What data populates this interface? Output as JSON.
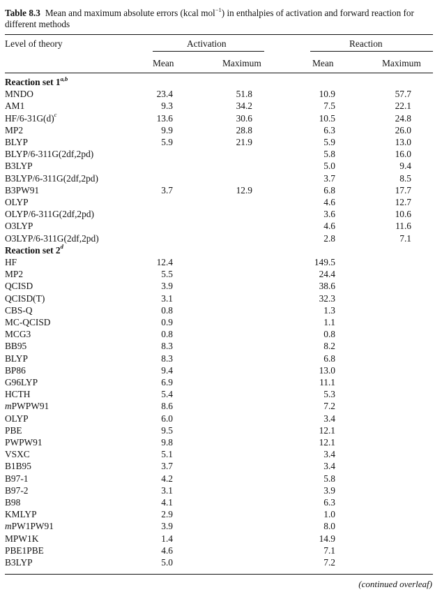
{
  "caption": {
    "number": "Table 8.3",
    "text_a": "Mean and maximum absolute errors (kcal mol",
    "text_sup": "−1",
    "text_b": ") in enthalpies of activation and forward reaction for different methods"
  },
  "header": {
    "level": "Level of theory",
    "activation": "Activation",
    "reaction": "Reaction",
    "mean1": "Mean",
    "max1": "Maximum",
    "mean2": "Mean",
    "max2": "Maximum"
  },
  "rows": [
    {
      "type": "section",
      "label": "Reaction set 1",
      "sup": "a,b"
    },
    {
      "label": "MNDO",
      "v": [
        "23.4",
        "51.8",
        "10.9",
        "57.7"
      ]
    },
    {
      "label": "AM1",
      "v": [
        "9.3",
        "34.2",
        "7.5",
        "22.1"
      ]
    },
    {
      "label": "HF/6-31G(d)",
      "sup": "c",
      "v": [
        "13.6",
        "30.6",
        "10.5",
        "24.8"
      ]
    },
    {
      "label": "MP2",
      "v": [
        "9.9",
        "28.8",
        "6.3",
        "26.0"
      ]
    },
    {
      "label": "BLYP",
      "v": [
        "5.9",
        "21.9",
        "5.9",
        "13.0"
      ]
    },
    {
      "label": "BLYP/6-311G(2df,2pd)",
      "v": [
        "",
        "",
        "5.8",
        "16.0"
      ]
    },
    {
      "label": "B3LYP",
      "v": [
        "",
        "",
        "5.0",
        "9.4"
      ]
    },
    {
      "label": "B3LYP/6-311G(2df,2pd)",
      "v": [
        "",
        "",
        "3.7",
        "8.5"
      ]
    },
    {
      "label": "B3PW91",
      "v": [
        "3.7",
        "12.9",
        "6.8",
        "17.7"
      ]
    },
    {
      "label": "OLYP",
      "v": [
        "",
        "",
        "4.6",
        "12.7"
      ]
    },
    {
      "label": "OLYP/6-311G(2df,2pd)",
      "v": [
        "",
        "",
        "3.6",
        "10.6"
      ]
    },
    {
      "label": "O3LYP",
      "v": [
        "",
        "",
        "4.6",
        "11.6"
      ]
    },
    {
      "label": "O3LYP/6-311G(2df,2pd)",
      "v": [
        "",
        "",
        "2.8",
        "7.1"
      ]
    },
    {
      "type": "section",
      "label": "Reaction set 2",
      "sup": "d"
    },
    {
      "label": "HF",
      "v": [
        "12.4",
        "",
        "149.5",
        ""
      ]
    },
    {
      "label": "MP2",
      "v": [
        "5.5",
        "",
        "24.4",
        ""
      ]
    },
    {
      "label": "QCISD",
      "v": [
        "3.9",
        "",
        "38.6",
        ""
      ]
    },
    {
      "label": "QCISD(T)",
      "v": [
        "3.1",
        "",
        "32.3",
        ""
      ]
    },
    {
      "label": "CBS-Q",
      "v": [
        "0.8",
        "",
        "1.3",
        ""
      ]
    },
    {
      "label": "MC-QCISD",
      "v": [
        "0.9",
        "",
        "1.1",
        ""
      ]
    },
    {
      "label": "MCG3",
      "v": [
        "0.8",
        "",
        "0.8",
        ""
      ]
    },
    {
      "label": "BB95",
      "v": [
        "8.3",
        "",
        "8.2",
        ""
      ]
    },
    {
      "label": "BLYP",
      "v": [
        "8.3",
        "",
        "6.8",
        ""
      ]
    },
    {
      "label": "BP86",
      "v": [
        "9.4",
        "",
        "13.0",
        ""
      ]
    },
    {
      "label": "G96LYP",
      "v": [
        "6.9",
        "",
        "11.1",
        ""
      ]
    },
    {
      "label": "HCTH",
      "v": [
        "5.4",
        "",
        "5.3",
        ""
      ]
    },
    {
      "label": "mPWPW91",
      "italic_prefix": "m",
      "v": [
        "8.6",
        "",
        "7.2",
        ""
      ]
    },
    {
      "label": "OLYP",
      "v": [
        "6.0",
        "",
        "3.4",
        ""
      ]
    },
    {
      "label": "PBE",
      "v": [
        "9.5",
        "",
        "12.1",
        ""
      ]
    },
    {
      "label": "PWPW91",
      "v": [
        "9.8",
        "",
        "12.1",
        ""
      ]
    },
    {
      "label": "VSXC",
      "v": [
        "5.1",
        "",
        "3.4",
        ""
      ]
    },
    {
      "label": "B1B95",
      "v": [
        "3.7",
        "",
        "3.4",
        ""
      ]
    },
    {
      "label": "B97-1",
      "v": [
        "4.2",
        "",
        "5.8",
        ""
      ]
    },
    {
      "label": "B97-2",
      "v": [
        "3.1",
        "",
        "3.9",
        ""
      ]
    },
    {
      "label": "B98",
      "v": [
        "4.1",
        "",
        "6.3",
        ""
      ]
    },
    {
      "label": "KMLYP",
      "v": [
        "2.9",
        "",
        "1.0",
        ""
      ]
    },
    {
      "label": "mPW1PW91",
      "italic_prefix": "m",
      "v": [
        "3.9",
        "",
        "8.0",
        ""
      ]
    },
    {
      "label": "MPW1K",
      "v": [
        "1.4",
        "",
        "14.9",
        ""
      ]
    },
    {
      "label": "PBE1PBE",
      "v": [
        "4.6",
        "",
        "7.1",
        ""
      ]
    },
    {
      "label": "B3LYP",
      "v": [
        "5.0",
        "",
        "7.2",
        ""
      ]
    }
  ],
  "footer": {
    "continued": "(continued overleaf)"
  }
}
